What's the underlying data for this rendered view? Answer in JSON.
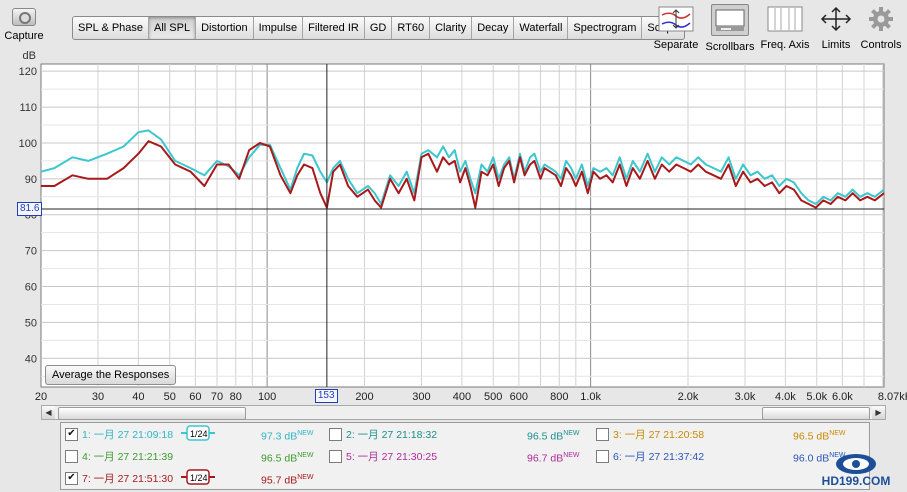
{
  "capture": {
    "label": "Capture"
  },
  "tabs": [
    {
      "label": "SPL & Phase",
      "active": false
    },
    {
      "label": "All SPL",
      "active": true
    },
    {
      "label": "Distortion",
      "active": false
    },
    {
      "label": "Impulse",
      "active": false
    },
    {
      "label": "Filtered IR",
      "active": false
    },
    {
      "label": "GD",
      "active": false
    },
    {
      "label": "RT60",
      "active": false
    },
    {
      "label": "Clarity",
      "active": false
    },
    {
      "label": "Decay",
      "active": false
    },
    {
      "label": "Waterfall",
      "active": false
    },
    {
      "label": "Spectrogram",
      "active": false
    },
    {
      "label": "Scope",
      "active": false
    }
  ],
  "toolbar": [
    {
      "label": "Separate",
      "icon": "separate-icon"
    },
    {
      "label": "Scrollbars",
      "icon": "scrollbars-icon"
    },
    {
      "label": "Freq. Axis",
      "icon": "freq-axis-icon"
    },
    {
      "label": "Limits",
      "icon": "limits-icon"
    },
    {
      "label": "Controls",
      "icon": "gear-icon"
    }
  ],
  "average_button": {
    "label": "Average the Responses"
  },
  "marker": {
    "level_label": "81.6",
    "freq_label": "153"
  },
  "chart_data": {
    "type": "line",
    "ylabel": "dB",
    "xscale": "log",
    "xlim": [
      20,
      8070
    ],
    "ylim": [
      32,
      122
    ],
    "yticks": [
      40,
      50,
      60,
      70,
      80,
      90,
      100,
      110,
      120
    ],
    "xticks": [
      {
        "v": 20,
        "label": "20"
      },
      {
        "v": 30,
        "label": "30"
      },
      {
        "v": 40,
        "label": "40"
      },
      {
        "v": 50,
        "label": "50"
      },
      {
        "v": 60,
        "label": "60"
      },
      {
        "v": 70,
        "label": "70"
      },
      {
        "v": 80,
        "label": "80"
      },
      {
        "v": 100,
        "label": "100"
      },
      {
        "v": 200,
        "label": "200"
      },
      {
        "v": 300,
        "label": "300"
      },
      {
        "v": 400,
        "label": "400"
      },
      {
        "v": 500,
        "label": "500"
      },
      {
        "v": 600,
        "label": "600"
      },
      {
        "v": 800,
        "label": "800"
      },
      {
        "v": 1000,
        "label": "1.0k"
      },
      {
        "v": 2000,
        "label": "2.0k"
      },
      {
        "v": 3000,
        "label": "3.0k"
      },
      {
        "v": 4000,
        "label": "4.0k"
      },
      {
        "v": 5000,
        "label": "5.0k"
      },
      {
        "v": 6000,
        "label": "6.0k"
      },
      {
        "v": 8070,
        "label": "8.07kHz"
      }
    ],
    "grid": true,
    "cursor": {
      "x": 153,
      "y": 81.6
    },
    "series": [
      {
        "name": "1: 一月 27 21:09:18",
        "color": "#3cc7cf",
        "points": [
          [
            20,
            92
          ],
          [
            22,
            93
          ],
          [
            25,
            96
          ],
          [
            28,
            95
          ],
          [
            32,
            97
          ],
          [
            36,
            99
          ],
          [
            40,
            103
          ],
          [
            43,
            103.5
          ],
          [
            47,
            101
          ],
          [
            52,
            95
          ],
          [
            58,
            93
          ],
          [
            64,
            91
          ],
          [
            70,
            95
          ],
          [
            76,
            93.5
          ],
          [
            82,
            91
          ],
          [
            88,
            96
          ],
          [
            95,
            99.5
          ],
          [
            102,
            99.5
          ],
          [
            110,
            93
          ],
          [
            118,
            87
          ],
          [
            124,
            93
          ],
          [
            130,
            97
          ],
          [
            138,
            96.5
          ],
          [
            146,
            92
          ],
          [
            153,
            89
          ],
          [
            160,
            93
          ],
          [
            168,
            95
          ],
          [
            178,
            90
          ],
          [
            190,
            86
          ],
          [
            205,
            88
          ],
          [
            215,
            86
          ],
          [
            225,
            83
          ],
          [
            240,
            91
          ],
          [
            255,
            88
          ],
          [
            270,
            92
          ],
          [
            285,
            86
          ],
          [
            300,
            97
          ],
          [
            315,
            98
          ],
          [
            335,
            96
          ],
          [
            350,
            99
          ],
          [
            365,
            96
          ],
          [
            380,
            98
          ],
          [
            395,
            92
          ],
          [
            410,
            95
          ],
          [
            425,
            90
          ],
          [
            440,
            86
          ],
          [
            460,
            94
          ],
          [
            480,
            92
          ],
          [
            500,
            96
          ],
          [
            520,
            90
          ],
          [
            540,
            94
          ],
          [
            560,
            96
          ],
          [
            580,
            90
          ],
          [
            605,
            97
          ],
          [
            625,
            92
          ],
          [
            650,
            96
          ],
          [
            670,
            97
          ],
          [
            700,
            92
          ],
          [
            720,
            94
          ],
          [
            750,
            93
          ],
          [
            780,
            92
          ],
          [
            810,
            90
          ],
          [
            840,
            95
          ],
          [
            870,
            93
          ],
          [
            900,
            90
          ],
          [
            940,
            94
          ],
          [
            980,
            88
          ],
          [
            1020,
            93
          ],
          [
            1070,
            92
          ],
          [
            1120,
            93
          ],
          [
            1170,
            91
          ],
          [
            1230,
            96
          ],
          [
            1290,
            90
          ],
          [
            1350,
            95
          ],
          [
            1420,
            92
          ],
          [
            1500,
            97
          ],
          [
            1580,
            92
          ],
          [
            1660,
            96
          ],
          [
            1750,
            94
          ],
          [
            1840,
            96
          ],
          [
            1940,
            95
          ],
          [
            2040,
            94
          ],
          [
            2150,
            96
          ],
          [
            2270,
            94
          ],
          [
            2400,
            93
          ],
          [
            2530,
            92
          ],
          [
            2670,
            96
          ],
          [
            2810,
            90
          ],
          [
            2960,
            94
          ],
          [
            3120,
            91
          ],
          [
            3280,
            92
          ],
          [
            3450,
            90
          ],
          [
            3640,
            91
          ],
          [
            3830,
            88
          ],
          [
            4030,
            90
          ],
          [
            4250,
            89
          ],
          [
            4480,
            86
          ],
          [
            4720,
            84
          ],
          [
            4970,
            83
          ],
          [
            5240,
            85
          ],
          [
            5520,
            84
          ],
          [
            5810,
            86
          ],
          [
            6130,
            85
          ],
          [
            6460,
            87
          ],
          [
            6810,
            85
          ],
          [
            7170,
            86
          ],
          [
            7560,
            85
          ],
          [
            8070,
            87
          ]
        ]
      },
      {
        "name": "7: 一月 27 21:51:30",
        "color": "#a8191b",
        "points": [
          [
            20,
            88
          ],
          [
            22,
            88
          ],
          [
            25,
            91
          ],
          [
            28,
            90
          ],
          [
            32,
            90
          ],
          [
            36,
            93
          ],
          [
            40,
            97
          ],
          [
            43,
            100.5
          ],
          [
            47,
            99
          ],
          [
            52,
            94
          ],
          [
            58,
            92
          ],
          [
            64,
            88
          ],
          [
            70,
            94
          ],
          [
            76,
            94
          ],
          [
            82,
            90
          ],
          [
            88,
            98
          ],
          [
            95,
            100
          ],
          [
            102,
            99
          ],
          [
            110,
            91
          ],
          [
            118,
            86
          ],
          [
            124,
            91
          ],
          [
            130,
            94
          ],
          [
            138,
            93
          ],
          [
            146,
            86
          ],
          [
            153,
            82
          ],
          [
            160,
            92
          ],
          [
            168,
            94
          ],
          [
            178,
            88
          ],
          [
            190,
            85
          ],
          [
            205,
            87
          ],
          [
            215,
            84
          ],
          [
            225,
            82
          ],
          [
            240,
            90
          ],
          [
            255,
            86
          ],
          [
            270,
            90
          ],
          [
            285,
            84
          ],
          [
            300,
            96
          ],
          [
            315,
            97
          ],
          [
            335,
            92
          ],
          [
            350,
            96
          ],
          [
            365,
            94
          ],
          [
            380,
            95
          ],
          [
            395,
            89
          ],
          [
            410,
            93
          ],
          [
            425,
            88
          ],
          [
            440,
            82
          ],
          [
            460,
            92
          ],
          [
            480,
            91
          ],
          [
            500,
            94
          ],
          [
            520,
            88
          ],
          [
            540,
            93
          ],
          [
            560,
            95
          ],
          [
            580,
            89
          ],
          [
            605,
            96
          ],
          [
            625,
            91
          ],
          [
            650,
            94
          ],
          [
            670,
            95
          ],
          [
            700,
            90
          ],
          [
            720,
            93
          ],
          [
            750,
            92
          ],
          [
            780,
            91
          ],
          [
            810,
            88
          ],
          [
            840,
            93
          ],
          [
            870,
            91
          ],
          [
            900,
            88
          ],
          [
            940,
            92
          ],
          [
            980,
            86
          ],
          [
            1020,
            92
          ],
          [
            1070,
            90
          ],
          [
            1120,
            91
          ],
          [
            1170,
            89
          ],
          [
            1230,
            94
          ],
          [
            1290,
            88
          ],
          [
            1350,
            93
          ],
          [
            1420,
            90
          ],
          [
            1500,
            95
          ],
          [
            1580,
            90
          ],
          [
            1660,
            94
          ],
          [
            1750,
            92
          ],
          [
            1840,
            94
          ],
          [
            1940,
            93
          ],
          [
            2040,
            92
          ],
          [
            2150,
            94
          ],
          [
            2270,
            92
          ],
          [
            2400,
            91
          ],
          [
            2530,
            90
          ],
          [
            2670,
            94
          ],
          [
            2810,
            88
          ],
          [
            2960,
            92
          ],
          [
            3120,
            89
          ],
          [
            3280,
            90
          ],
          [
            3450,
            88
          ],
          [
            3640,
            89
          ],
          [
            3830,
            86
          ],
          [
            4030,
            88
          ],
          [
            4250,
            87
          ],
          [
            4480,
            84
          ],
          [
            4720,
            83
          ],
          [
            4970,
            82
          ],
          [
            5240,
            84
          ],
          [
            5520,
            83
          ],
          [
            5810,
            85
          ],
          [
            6130,
            84
          ],
          [
            6460,
            86
          ],
          [
            6810,
            84
          ],
          [
            7170,
            85
          ],
          [
            7560,
            84
          ],
          [
            8070,
            86
          ]
        ]
      }
    ]
  },
  "legend": [
    {
      "label": "1: 一月 27 21:09:18",
      "value": "97.3 dB",
      "badge": "NEW",
      "checked": true,
      "color": "#2db6c4",
      "smoothing": "1/24",
      "swatch": "#3cc7cf"
    },
    {
      "label": "2: 一月 27 21:18:32",
      "value": "96.5 dB",
      "badge": "NEW",
      "checked": false,
      "color": "#1a8f8f"
    },
    {
      "label": "3: 一月 27 21:20:58",
      "value": "96.5 dB",
      "badge": "NEW",
      "checked": false,
      "color": "#c98a00"
    },
    {
      "label": "4: 一月 27 21:21:39",
      "value": "96.5 dB",
      "badge": "NEW",
      "checked": false,
      "color": "#3d9b2f"
    },
    {
      "label": "5: 一月 27 21:30:25",
      "value": "96.7 dB",
      "badge": "NEW",
      "checked": false,
      "color": "#b0289c"
    },
    {
      "label": "6: 一月 27 21:37:42",
      "value": "96.0 dB",
      "badge": "NEW",
      "checked": false,
      "color": "#2a56b8"
    },
    {
      "label": "7: 一月 27 21:51:30",
      "value": "95.7 dB",
      "badge": "NEW",
      "checked": true,
      "color": "#a8191b",
      "smoothing": "1/24",
      "swatch": "#a8191b"
    }
  ],
  "watermark": {
    "text": "HD199.COM"
  }
}
